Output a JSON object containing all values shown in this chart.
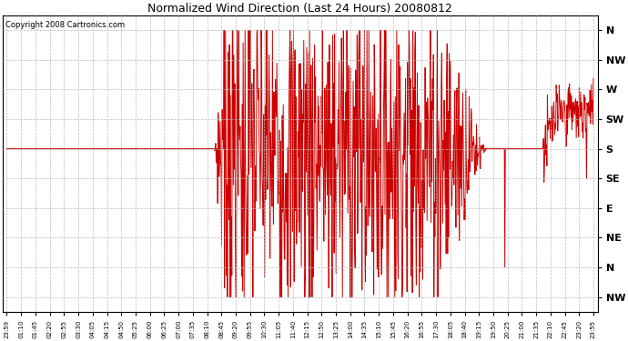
{
  "title": "Normalized Wind Direction (Last 24 Hours) 20080812",
  "copyright": "Copyright 2008 Cartronics.com",
  "line_color": "#cc0000",
  "bg_color": "#ffffff",
  "grid_color": "#bbbbbb",
  "ytick_labels": [
    "N",
    "NW",
    "W",
    "SW",
    "S",
    "SE",
    "E",
    "NE",
    "N",
    "NW"
  ],
  "ytick_values": [
    9,
    8,
    7,
    6,
    5,
    4,
    3,
    2,
    1,
    0
  ],
  "ylim": [
    -0.5,
    9.5
  ],
  "xtick_labels": [
    "23:59",
    "01:10",
    "01:45",
    "02:20",
    "02:55",
    "03:30",
    "04:05",
    "04:15",
    "04:50",
    "05:25",
    "06:00",
    "06:25",
    "07:00",
    "07:35",
    "08:10",
    "08:45",
    "09:20",
    "09:55",
    "10:30",
    "11:05",
    "11:40",
    "12:15",
    "12:50",
    "13:25",
    "14:00",
    "14:35",
    "15:10",
    "15:45",
    "16:20",
    "16:55",
    "17:30",
    "18:05",
    "18:40",
    "19:15",
    "19:50",
    "20:25",
    "21:00",
    "21:35",
    "22:10",
    "22:45",
    "23:20",
    "23:55"
  ],
  "figsize": [
    6.9,
    3.75
  ],
  "dpi": 100
}
